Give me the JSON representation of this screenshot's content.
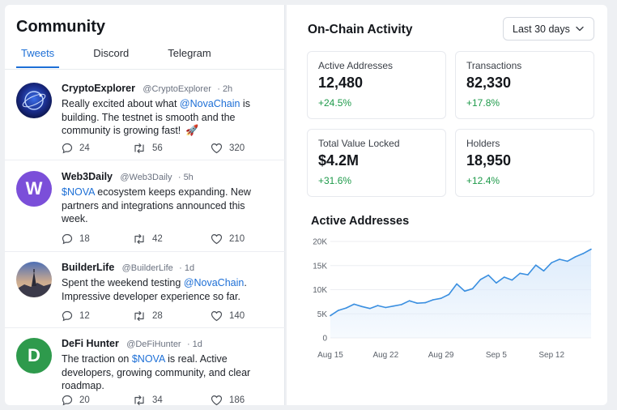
{
  "community": {
    "title": "Community",
    "tabs": [
      {
        "label": "Tweets",
        "active": true
      },
      {
        "label": "Discord",
        "active": false
      },
      {
        "label": "Telegram",
        "active": false
      }
    ],
    "tweets": [
      {
        "name": "CryptoExplorer",
        "handle": "@CryptoExplorer",
        "time": "· 2h",
        "text_parts": [
          "Really excited about what ",
          "@NovaChain",
          " is building. The testnet is smooth and the community is growing fast!"
        ],
        "emoji": "🚀",
        "replies": "24",
        "retweets": "56",
        "likes": "320",
        "avatar": "globe-avatar"
      },
      {
        "name": "Web3Daily",
        "handle": "@Web3Daily",
        "time": "· 5h",
        "text_parts": [
          "$NOVA",
          " ecosystem keeps expanding. New partners and integrations announced this week."
        ],
        "replies": "18",
        "retweets": "42",
        "likes": "210",
        "avatar_letter": "W",
        "avatar_color": "#7b4fd9"
      },
      {
        "name": "BuilderLife",
        "handle": "@BuilderLife",
        "time": "· 1d",
        "text_parts": [
          "Spent the weekend testing ",
          "@NovaChain",
          ". Impressive developer experience so far."
        ],
        "replies": "12",
        "retweets": "28",
        "likes": "140",
        "avatar": "landscape-avatar"
      },
      {
        "name": "DeFi Hunter",
        "handle": "@DeFiHunter",
        "time": "· 1d",
        "text_parts": [
          "The traction on ",
          "$NOVA",
          " is real. Active developers, growing community, and clear roadmap."
        ],
        "replies": "20",
        "retweets": "34",
        "likes": "186",
        "avatar_letter": "D",
        "avatar_color": "#2e9a4c"
      }
    ]
  },
  "onchain": {
    "title": "On-Chain Activity",
    "range_label": "Last 30 days",
    "cards": [
      {
        "label": "Active Addresses",
        "value": "12,480",
        "change": "+24.5%"
      },
      {
        "label": "Transactions",
        "value": "82,330",
        "change": "+17.8%"
      },
      {
        "label": "Total Value Locked",
        "value": "$4.2M",
        "change": "+31.6%"
      },
      {
        "label": "Holders",
        "value": "18,950",
        "change": "+12.4%"
      }
    ]
  },
  "colors": {
    "accent": "#1d6fd6",
    "positive": "#1e9a4a",
    "line": "#3a8fe0",
    "area": "#dcebfb"
  },
  "chart_data": {
    "type": "area",
    "title": "Active Addresses",
    "y_ticks": [
      "0",
      "5K",
      "10K",
      "15K",
      "20K"
    ],
    "ylim": [
      0,
      20000
    ],
    "x_ticks": [
      "Aug 15",
      "Aug 22",
      "Aug 29",
      "Sep 5",
      "Sep 12"
    ],
    "x_tick_days": [
      0,
      7,
      14,
      21,
      28
    ],
    "xlim_days": [
      0,
      33
    ],
    "grid": "horizontal",
    "series": [
      {
        "values": [
          [
            0,
            4600
          ],
          [
            1,
            5700
          ],
          [
            2,
            6200
          ],
          [
            3,
            7000
          ],
          [
            4,
            6500
          ],
          [
            5,
            6100
          ],
          [
            6,
            6700
          ],
          [
            7,
            6300
          ],
          [
            8,
            6600
          ],
          [
            9,
            6900
          ],
          [
            10,
            7700
          ],
          [
            11,
            7200
          ],
          [
            12,
            7300
          ],
          [
            13,
            7900
          ],
          [
            14,
            8200
          ],
          [
            15,
            9000
          ],
          [
            16,
            11200
          ],
          [
            17,
            9700
          ],
          [
            18,
            10200
          ],
          [
            19,
            12100
          ],
          [
            20,
            13000
          ],
          [
            21,
            11400
          ],
          [
            22,
            12600
          ],
          [
            23,
            12000
          ],
          [
            24,
            13400
          ],
          [
            25,
            13100
          ],
          [
            26,
            15100
          ],
          [
            27,
            13900
          ],
          [
            28,
            15600
          ],
          [
            29,
            16300
          ],
          [
            30,
            15900
          ],
          [
            31,
            16800
          ],
          [
            32,
            17500
          ],
          [
            33,
            18400
          ]
        ]
      }
    ]
  }
}
